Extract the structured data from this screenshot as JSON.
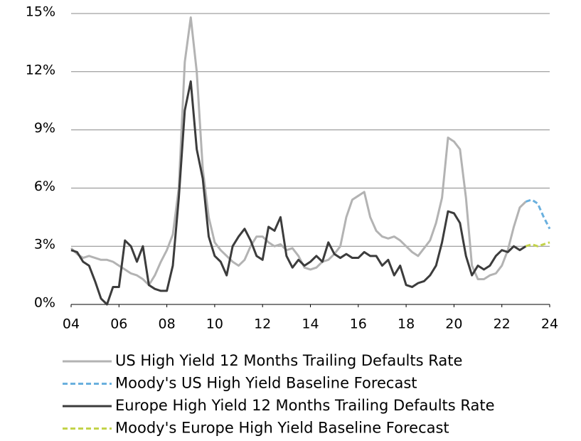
{
  "chart_data": {
    "type": "line",
    "x": [
      4,
      4.25,
      4.5,
      4.75,
      5,
      5.25,
      5.5,
      5.75,
      6,
      6.25,
      6.5,
      6.75,
      7,
      7.25,
      7.5,
      7.75,
      8,
      8.25,
      8.5,
      8.75,
      9,
      9.25,
      9.5,
      9.75,
      10,
      10.25,
      10.5,
      10.75,
      11,
      11.25,
      11.5,
      11.75,
      12,
      12.25,
      12.5,
      12.75,
      13,
      13.25,
      13.5,
      13.75,
      14,
      14.25,
      14.5,
      14.75,
      15,
      15.25,
      15.5,
      15.75,
      16,
      16.25,
      16.5,
      16.75,
      17,
      17.25,
      17.5,
      17.75,
      18,
      18.25,
      18.5,
      18.75,
      19,
      19.25,
      19.5,
      19.75,
      20,
      20.25,
      20.5,
      20.75,
      21,
      21.25,
      21.5,
      21.75,
      22,
      22.25,
      22.5,
      22.75,
      23,
      23.25,
      23.5,
      23.75,
      24
    ],
    "series": [
      {
        "name": "US High Yield 12 Months Trailing Defaults Rate",
        "color": "#b3b3b3",
        "dashed": false,
        "values": [
          2.9,
          2.6,
          2.4,
          2.5,
          2.4,
          2.3,
          2.3,
          2.2,
          2.0,
          1.8,
          1.6,
          1.5,
          1.3,
          1.0,
          1.5,
          2.2,
          2.8,
          3.6,
          6.0,
          12.5,
          14.8,
          12.0,
          7.0,
          4.5,
          3.2,
          2.8,
          2.5,
          2.2,
          2.0,
          2.3,
          3.0,
          3.5,
          3.5,
          3.2,
          3.0,
          3.1,
          2.8,
          2.9,
          2.5,
          1.9,
          1.8,
          1.9,
          2.2,
          2.3,
          2.6,
          3.0,
          4.5,
          5.4,
          5.6,
          5.8,
          4.5,
          3.8,
          3.5,
          3.4,
          3.5,
          3.3,
          3.0,
          2.7,
          2.5,
          2.9,
          3.3,
          4.2,
          5.5,
          8.6,
          8.4,
          8.0,
          5.5,
          2.0,
          1.3,
          1.3,
          1.5,
          1.6,
          2.0,
          2.8,
          4.0,
          5.0,
          5.3,
          null,
          null,
          null,
          null
        ]
      },
      {
        "name": "Moody's US High Yield Baseline Forecast",
        "color": "#6ab0de",
        "dashed": true,
        "values": [
          null,
          null,
          null,
          null,
          null,
          null,
          null,
          null,
          null,
          null,
          null,
          null,
          null,
          null,
          null,
          null,
          null,
          null,
          null,
          null,
          null,
          null,
          null,
          null,
          null,
          null,
          null,
          null,
          null,
          null,
          null,
          null,
          null,
          null,
          null,
          null,
          null,
          null,
          null,
          null,
          null,
          null,
          null,
          null,
          null,
          null,
          null,
          null,
          null,
          null,
          null,
          null,
          null,
          null,
          null,
          null,
          null,
          null,
          null,
          null,
          null,
          null,
          null,
          null,
          null,
          null,
          null,
          null,
          null,
          null,
          null,
          null,
          null,
          null,
          null,
          null,
          5.3,
          5.4,
          5.2,
          4.5,
          3.9
        ]
      },
      {
        "name": "Europe High Yield 12 Months Trailing Defaults Rate",
        "color": "#3c3c3c",
        "dashed": false,
        "values": [
          2.8,
          2.7,
          2.2,
          2.0,
          1.2,
          0.3,
          0.0,
          0.9,
          0.9,
          3.3,
          3.0,
          2.2,
          3.0,
          1.0,
          0.8,
          0.7,
          0.7,
          2.0,
          5.5,
          10.0,
          11.5,
          8.0,
          6.5,
          3.5,
          2.5,
          2.2,
          1.5,
          3.0,
          3.5,
          3.9,
          3.3,
          2.5,
          2.3,
          4.0,
          3.8,
          4.5,
          2.5,
          1.9,
          2.3,
          2.0,
          2.2,
          2.5,
          2.2,
          3.2,
          2.6,
          2.4,
          2.6,
          2.4,
          2.4,
          2.7,
          2.5,
          2.5,
          2.0,
          2.3,
          1.5,
          2.0,
          1.0,
          0.9,
          1.1,
          1.2,
          1.5,
          2.0,
          3.2,
          4.8,
          4.7,
          4.2,
          2.5,
          1.5,
          2.0,
          1.8,
          2.0,
          2.5,
          2.8,
          2.7,
          3.0,
          2.8,
          3.0,
          null,
          null,
          null,
          null
        ]
      },
      {
        "name": "Moody's Europe High Yield Baseline Forecast",
        "color": "#c3d34a",
        "dashed": true,
        "values": [
          null,
          null,
          null,
          null,
          null,
          null,
          null,
          null,
          null,
          null,
          null,
          null,
          null,
          null,
          null,
          null,
          null,
          null,
          null,
          null,
          null,
          null,
          null,
          null,
          null,
          null,
          null,
          null,
          null,
          null,
          null,
          null,
          null,
          null,
          null,
          null,
          null,
          null,
          null,
          null,
          null,
          null,
          null,
          null,
          null,
          null,
          null,
          null,
          null,
          null,
          null,
          null,
          null,
          null,
          null,
          null,
          null,
          null,
          null,
          null,
          null,
          null,
          null,
          null,
          null,
          null,
          null,
          null,
          null,
          null,
          null,
          null,
          null,
          null,
          null,
          null,
          3.0,
          3.1,
          3.0,
          3.1,
          3.2
        ]
      }
    ],
    "xlim": [
      4,
      24
    ],
    "xticks": [
      {
        "value": 4,
        "label": "04"
      },
      {
        "value": 6,
        "label": "06"
      },
      {
        "value": 8,
        "label": "08"
      },
      10,
      12,
      14,
      16,
      18,
      20,
      22,
      24
    ],
    "ylim": [
      0,
      15
    ],
    "yticks": [
      {
        "value": 0,
        "label": "0%"
      },
      {
        "value": 3,
        "label": "3%"
      },
      {
        "value": 6,
        "label": "6%"
      },
      {
        "value": 9,
        "label": "9%"
      },
      {
        "value": 12,
        "label": "12%"
      },
      {
        "value": 15,
        "label": "15%"
      }
    ],
    "grid": true
  }
}
